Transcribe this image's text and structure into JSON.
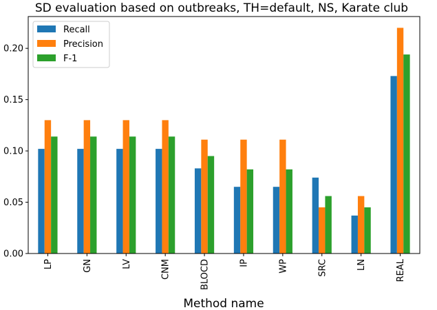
{
  "chart_data": {
    "type": "bar",
    "title": "SD evaluation based on outbreaks, TH=default, NS, Karate club",
    "xlabel": "Method name",
    "ylabel": "",
    "categories": [
      "LP",
      "GN",
      "LV",
      "CNM",
      "BLOCD",
      "IP",
      "WP",
      "SRC",
      "LN",
      "REAL"
    ],
    "series": [
      {
        "name": "Recall",
        "color": "#1f77b4",
        "values": [
          0.102,
          0.102,
          0.102,
          0.102,
          0.083,
          0.065,
          0.065,
          0.074,
          0.037,
          0.173
        ]
      },
      {
        "name": "Precision",
        "color": "#ff7f0e",
        "values": [
          0.13,
          0.13,
          0.13,
          0.13,
          0.111,
          0.111,
          0.111,
          0.045,
          0.056,
          0.22
        ]
      },
      {
        "name": "F-1",
        "color": "#2ca02c",
        "values": [
          0.114,
          0.114,
          0.114,
          0.114,
          0.095,
          0.082,
          0.082,
          0.056,
          0.045,
          0.194
        ]
      }
    ],
    "ylim": [
      0,
      0.231
    ],
    "yticks": [
      "0.00",
      "0.05",
      "0.10",
      "0.15",
      "0.20"
    ],
    "ytick_values": [
      0,
      0.05,
      0.1,
      0.15,
      0.2
    ],
    "grid": false,
    "legend_position": "upper-left"
  }
}
